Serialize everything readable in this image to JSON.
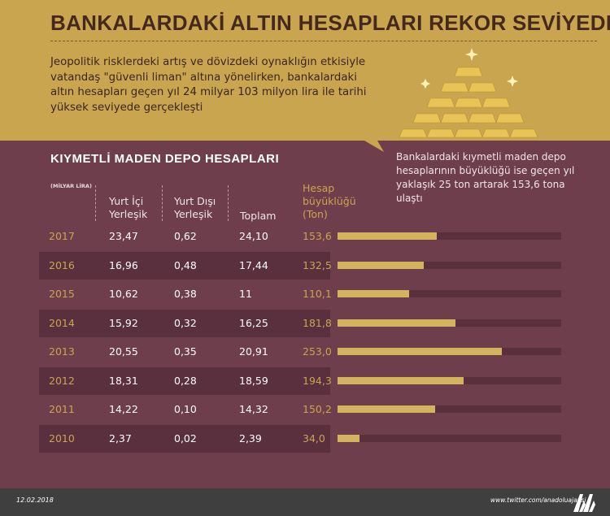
{
  "title": "BANKALARDAKİ ALTIN HESAPLARI REKOR SEVİYEDE",
  "intro": "Jeopolitik risklerdeki artış ve dövizdeki oynaklığın etkisiyle vatandaş \"güvenli liman\" altına yönelirken, bankalardaki altın hesapları geçen yıl 24 milyar 103 milyon lira ile tarihi yüksek seviyede gerçekleşti",
  "section_title": "KIYMETLİ MADEN DEPO HESAPLARI",
  "callout": "Bankalardaki kıymetli maden depo hesaplarının büyüklüğü ise geçen yıl yaklaşık 25 ton artarak 153,6 tona ulaştı",
  "unit_label": "(MİLYAR LİRA)",
  "headers": {
    "resident": "Yurt İçi Yerleşik",
    "nonresident": "Yurt Dışı Yerleşik",
    "total": "Toplam",
    "size": "Hesap büyüklüğü (Ton)"
  },
  "colors": {
    "gold": "#c9a54f",
    "background": "#6e3e4d",
    "row_dark": "#5a2f3e",
    "bar": "#d4b35e"
  },
  "chart_data": {
    "type": "table",
    "columns": [
      "Yurt İçi Yerleşik",
      "Yurt Dışı Yerleşik",
      "Toplam",
      "Hesap büyüklüğü (Ton)"
    ],
    "rows": [
      {
        "year": "2017",
        "resident": "23,47",
        "nonresident": "0,62",
        "total": "24,10",
        "size": "153,6",
        "size_value": 153.6
      },
      {
        "year": "2016",
        "resident": "16,96",
        "nonresident": "0,48",
        "total": "17,44",
        "size": "132,5",
        "size_value": 132.5
      },
      {
        "year": "2015",
        "resident": "10,62",
        "nonresident": "0,38",
        "total": "11",
        "size": "110,1",
        "size_value": 110.1
      },
      {
        "year": "2014",
        "resident": "15,92",
        "nonresident": "0,32",
        "total": "16,25",
        "size": "181,8",
        "size_value": 181.8
      },
      {
        "year": "2013",
        "resident": "20,55",
        "nonresident": "0,35",
        "total": "20,91",
        "size": "253,0",
        "size_value": 253.0
      },
      {
        "year": "2012",
        "resident": "18,31",
        "nonresident": "0,28",
        "total": "18,59",
        "size": "194,3",
        "size_value": 194.3
      },
      {
        "year": "2011",
        "resident": "14,22",
        "nonresident": "0,10",
        "total": "14,32",
        "size": "150,2",
        "size_value": 150.2
      },
      {
        "year": "2010",
        "resident": "2,37",
        "nonresident": "0,02",
        "total": "2,39",
        "size": "34,0",
        "size_value": 34.0
      }
    ],
    "bar_max": 345
  },
  "footer": {
    "date": "12.02.2018",
    "twitter": "www.twitter.com/anadoluajansi"
  }
}
